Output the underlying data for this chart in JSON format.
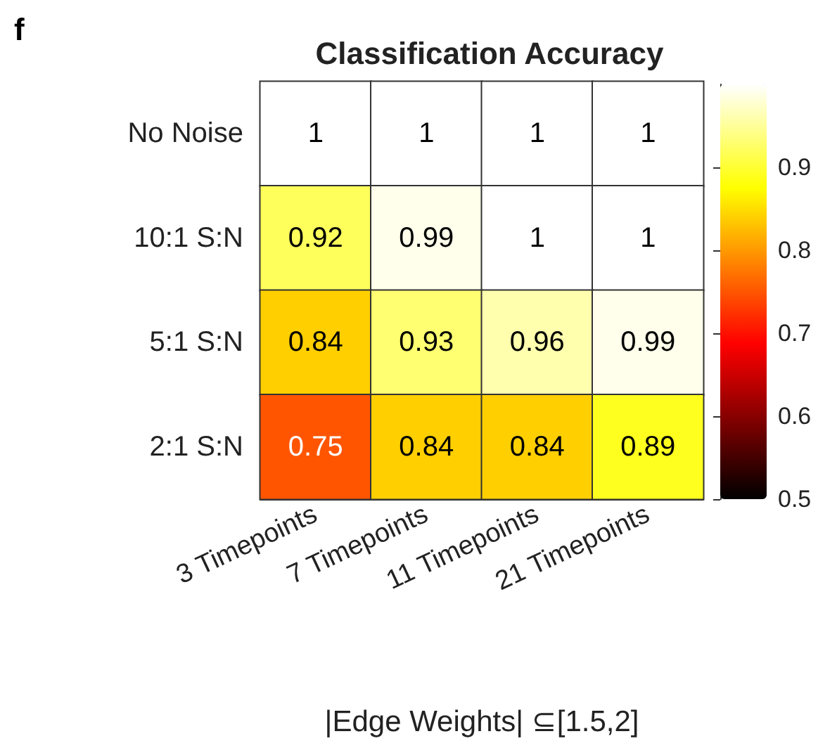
{
  "chart_data": {
    "type": "heatmap",
    "title": "Classification Accuracy",
    "xlabel": "|Edge Weights| ⊆[1.5,2]",
    "annotations": [
      "f"
    ],
    "categories": [
      "3 Timepoints",
      "7 Timepoints",
      "11 Timepoints",
      "21 Timepoints"
    ],
    "y_categories": [
      "No Noise",
      "10:1 S:N",
      "5:1 S:N",
      "2:1 S:N"
    ],
    "cells": [
      [
        1,
        1,
        1,
        1
      ],
      [
        0.92,
        0.99,
        1,
        1
      ],
      [
        0.84,
        0.93,
        0.96,
        0.99
      ],
      [
        0.75,
        0.84,
        0.84,
        0.89
      ]
    ],
    "data_labels": true,
    "clim": [
      0.5,
      1
    ],
    "cticks": [
      0.5,
      0.6,
      0.7,
      0.8,
      0.9
    ]
  }
}
